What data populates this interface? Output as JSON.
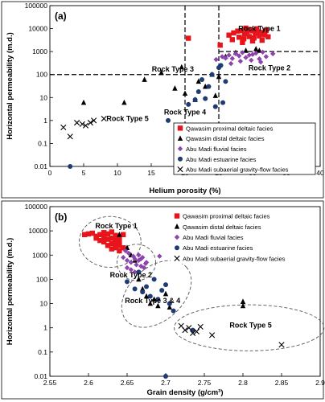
{
  "chart_data": [
    {
      "type": "scatter",
      "panel_label": "(a)",
      "xlabel": "Helium porosity (%)",
      "ylabel": "Horizontal permeability (m.d.)",
      "xscale": "linear",
      "yscale": "log",
      "xlim": [
        0,
        40
      ],
      "ylim": [
        0.01,
        100000
      ],
      "x_ticks": [
        0,
        5,
        10,
        15,
        20,
        25,
        30,
        35,
        40
      ],
      "y_ticks": [
        0.01,
        0.1,
        1,
        10,
        100,
        1000,
        10000,
        100000
      ],
      "x_tick_labels": [
        "0",
        "5",
        "10",
        "15",
        "20",
        "25",
        "30",
        "35",
        "40"
      ],
      "y_tick_labels": [
        "0.01",
        "0.1",
        "1",
        "10",
        "100",
        "1000",
        "10000",
        "100000"
      ],
      "legend_position": "bottom-right",
      "reference_lines": {
        "vertical": [
          20,
          25
        ],
        "horizontal": [
          {
            "y": 1000,
            "x_from": 25,
            "x_to": 40
          },
          {
            "y": 100,
            "x_from": 0,
            "x_to": 40
          }
        ]
      },
      "annotations": [
        {
          "text": "Rock Type 1",
          "x": 31.0,
          "y": 10000
        },
        {
          "text": "Rock Type 2",
          "x": 32.5,
          "y": 190
        },
        {
          "text": "Rock Type 3",
          "x": 18.2,
          "y": 170
        },
        {
          "text": "Rock Type 4",
          "x": 20.0,
          "y": 2.3
        },
        {
          "text": "Rock Type 5",
          "x": 11.5,
          "y": 1.2
        }
      ],
      "series": [
        {
          "name": "Qawasim proximal deltaic facies",
          "marker": "square",
          "color": "#e8141c",
          "x": [
            26.5,
            27.2,
            27.8,
            28.3,
            28.8,
            29.2,
            29.6,
            30.0,
            30.4,
            30.8,
            31.2,
            31.6,
            32.0,
            28.0,
            28.7,
            29.5,
            30.2,
            31.0,
            31.8,
            32.3,
            27.0,
            29.0,
            30.6,
            31.4,
            20.5,
            25.2,
            28.5,
            30.0
          ],
          "y": [
            5200,
            6500,
            7800,
            8200,
            6000,
            7500,
            9000,
            8000,
            6300,
            7200,
            5800,
            6800,
            8400,
            4200,
            3600,
            4500,
            3900,
            4800,
            5300,
            4400,
            3300,
            10500,
            9800,
            3100,
            3800,
            1900,
            2500,
            2900
          ]
        },
        {
          "name": "Qawasim distal deltaic facies",
          "marker": "triangle",
          "color": "#000000",
          "x": [
            5.0,
            11.0,
            14.0,
            16.5,
            18.5,
            19.5,
            20.0,
            21.5,
            22.0,
            23.0,
            24.0,
            24.5,
            25.0,
            26.0,
            27.5,
            29.0,
            30.5,
            31.0
          ],
          "y": [
            6,
            6,
            60,
            120,
            25,
            210,
            15,
            8,
            50,
            30,
            100,
            12,
            80,
            600,
            900,
            1100,
            1300,
            1100
          ]
        },
        {
          "name": "Abu Madi fluvial facies",
          "marker": "diamond",
          "color": "#8e44ad",
          "x": [
            24.6,
            25.5,
            26.0,
            26.5,
            27.0,
            27.5,
            28.0,
            28.5,
            29.0,
            29.5,
            30.0,
            30.5,
            31.0,
            31.5,
            32.0,
            26.8,
            28.2,
            29.8,
            31.2,
            33.0
          ],
          "y": [
            450,
            600,
            520,
            700,
            500,
            800,
            650,
            900,
            550,
            700,
            750,
            850,
            480,
            950,
            600,
            300,
            380,
            420,
            350,
            800
          ]
        },
        {
          "name": "Abu Madi estuarine facies",
          "marker": "circle",
          "color": "#1f3b73",
          "x": [
            3.0,
            17.5,
            20.5,
            21.5,
            22.0,
            22.5,
            23.0,
            23.5,
            24.0,
            24.5,
            25.0,
            25.3,
            25.6,
            26.0
          ],
          "y": [
            0.01,
            1,
            5,
            8,
            18,
            60,
            9,
            30,
            100,
            4,
            200,
            250,
            6,
            50
          ]
        },
        {
          "name": "Abu Madi subaerial gravity-flow facies",
          "marker": "x",
          "color": "#000000",
          "x": [
            2.0,
            3.0,
            4.0,
            4.8,
            5.3,
            6.0,
            6.5,
            8.0
          ],
          "y": [
            0.5,
            0.2,
            0.8,
            0.7,
            0.6,
            0.8,
            1.0,
            1.2
          ]
        }
      ]
    },
    {
      "type": "scatter",
      "panel_label": "(b)",
      "xlabel": "Grain density (g/cm³)",
      "ylabel": "Horizontal permeability (m.d.)",
      "xscale": "linear",
      "yscale": "log",
      "xlim": [
        2.55,
        2.9
      ],
      "ylim": [
        0.01,
        100000
      ],
      "x_ticks": [
        2.55,
        2.6,
        2.65,
        2.7,
        2.75,
        2.8,
        2.85,
        2.9
      ],
      "y_ticks": [
        0.01,
        0.1,
        1,
        10,
        100,
        1000,
        10000,
        100000
      ],
      "x_tick_labels": [
        "2.55",
        "2.6",
        "2.65",
        "2.7",
        "2.75",
        "2.8",
        "2.85",
        "2.9"
      ],
      "y_tick_labels": [
        "0.01",
        "0.1",
        "1",
        "10",
        "100",
        "1000",
        "10000",
        "100000"
      ],
      "legend_position": "top-right",
      "annotations": [
        {
          "text": "Rock Type 1",
          "x": 2.636,
          "y": 16000
        },
        {
          "text": "Rock Type 2",
          "x": 2.655,
          "y": 150
        },
        {
          "text": "Rock Type 3 & 4",
          "x": 2.683,
          "y": 13
        },
        {
          "text": "Rock Type 5",
          "x": 2.81,
          "y": 1.3
        }
      ],
      "series": [
        {
          "name": "Qawasim proximal deltaic facies",
          "marker": "square",
          "color": "#e8141c",
          "x": [
            2.595,
            2.6,
            2.605,
            2.61,
            2.615,
            2.62,
            2.625,
            2.63,
            2.635,
            2.64,
            2.645,
            2.61,
            2.62,
            2.625,
            2.63,
            2.635,
            2.64,
            2.62,
            2.63,
            2.64,
            2.645,
            2.625,
            2.635,
            2.615,
            2.63,
            2.64,
            2.62,
            2.635
          ],
          "y": [
            7000,
            7500,
            8000,
            6000,
            7000,
            8500,
            7500,
            9000,
            6500,
            5500,
            7000,
            5000,
            5500,
            4500,
            5000,
            4000,
            3500,
            3500,
            3000,
            2500,
            2000,
            2500,
            2000,
            4000,
            1800,
            1500,
            6000,
            3000
          ]
        },
        {
          "name": "Qawasim distal deltaic facies",
          "marker": "triangle",
          "color": "#000000",
          "x": [
            2.64,
            2.65,
            2.655,
            2.66,
            2.665,
            2.67,
            2.675,
            2.68,
            2.685,
            2.69,
            2.7,
            2.705,
            2.8,
            2.8
          ],
          "y": [
            7000,
            2000,
            1000,
            600,
            100,
            40,
            20,
            10,
            15,
            8,
            25,
            7,
            8,
            12
          ]
        },
        {
          "name": "Abu Madi fluvial facies",
          "marker": "diamond",
          "color": "#8e44ad",
          "x": [
            2.645,
            2.65,
            2.652,
            2.655,
            2.658,
            2.66,
            2.662,
            2.665,
            2.668,
            2.67,
            2.672,
            2.675,
            2.65,
            2.655,
            2.66,
            2.648,
            2.665,
            2.668,
            2.674,
            2.692
          ],
          "y": [
            800,
            600,
            1200,
            500,
            900,
            700,
            400,
            600,
            350,
            800,
            300,
            500,
            300,
            250,
            200,
            1500,
            1000,
            700,
            450,
            900
          ]
        },
        {
          "name": "Abu Madi estuarine facies",
          "marker": "circle",
          "color": "#1f3b73",
          "x": [
            2.65,
            2.66,
            2.665,
            2.67,
            2.675,
            2.68,
            2.685,
            2.69,
            2.695,
            2.7,
            2.705,
            2.71,
            2.7,
            2.735
          ],
          "y": [
            80,
            40,
            200,
            30,
            50,
            20,
            100,
            15,
            35,
            60,
            10,
            5,
            0.01,
            0.8
          ]
        },
        {
          "name": "Abu Madi subaerial gravity-flow facies",
          "marker": "x",
          "color": "#000000",
          "x": [
            2.72,
            2.725,
            2.73,
            2.735,
            2.74,
            2.745,
            2.76,
            2.85
          ],
          "y": [
            1.2,
            0.8,
            1.0,
            0.6,
            0.7,
            1.1,
            0.5,
            0.2
          ]
        }
      ]
    }
  ]
}
